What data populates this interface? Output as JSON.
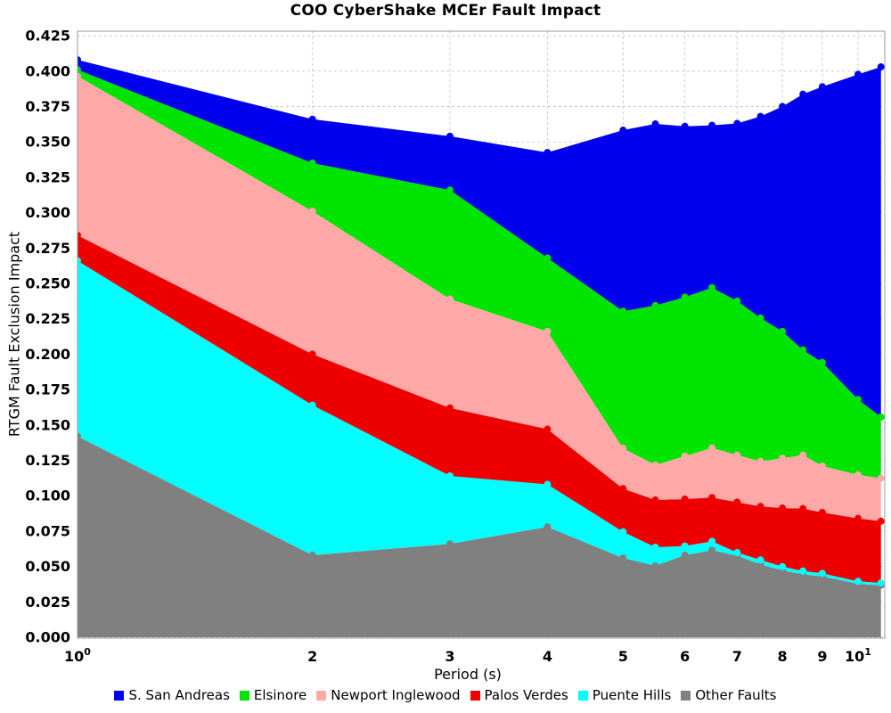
{
  "chart_data": {
    "type": "area",
    "stacked": true,
    "title": "COO CyberShake MCEr Fault Impact",
    "xlabel": "Period (s)",
    "ylabel": "RTGM Fault Exclusion Impact",
    "x_scale": "log",
    "xlim": [
      1,
      10.8
    ],
    "ylim": [
      0,
      0.425
    ],
    "grid": true,
    "legend_position": "bottom",
    "x": [
      1,
      2,
      3,
      4,
      5,
      5.5,
      6,
      6.5,
      7,
      7.5,
      8,
      8.5,
      9,
      10,
      10.7
    ],
    "x_ticks": [
      {
        "v": 1,
        "label": "10",
        "sup": "0"
      },
      {
        "v": 2,
        "label": "2"
      },
      {
        "v": 3,
        "label": "3"
      },
      {
        "v": 4,
        "label": "4"
      },
      {
        "v": 5,
        "label": "5"
      },
      {
        "v": 6,
        "label": "6"
      },
      {
        "v": 7,
        "label": "7"
      },
      {
        "v": 8,
        "label": "8"
      },
      {
        "v": 9,
        "label": "9"
      },
      {
        "v": 10,
        "label": "10",
        "sup": "1"
      }
    ],
    "y_tick_labels": [
      "0.000",
      "0.025",
      "0.050",
      "0.075",
      "0.100",
      "0.125",
      "0.150",
      "0.175",
      "0.200",
      "0.225",
      "0.250",
      "0.275",
      "0.300",
      "0.325",
      "0.350",
      "0.375",
      "0.400",
      "0.425"
    ],
    "y_tick_step": 0.025,
    "stack_order_bottom_to_top": [
      "Other Faults",
      "Puente Hills",
      "Palos Verdes",
      "Newport Inglewood",
      "Elsinore",
      "S. San Andreas"
    ],
    "series": [
      {
        "name": "S. San Andreas",
        "color": "#0000EE",
        "values": [
          0.007,
          0.031,
          0.038,
          0.0745,
          0.128,
          0.1283,
          0.1207,
          0.1147,
          0.1254,
          0.1424,
          0.1589,
          0.1807,
          0.1948,
          0.2297,
          0.2474
        ]
      },
      {
        "name": "Elsinore",
        "color": "#00E400",
        "values": [
          0.0045,
          0.034,
          0.077,
          0.052,
          0.0968,
          0.1127,
          0.1123,
          0.1133,
          0.1089,
          0.1013,
          0.0896,
          0.0743,
          0.0732,
          0.0532,
          0.0433
        ]
      },
      {
        "name": "Newport Inglewood",
        "color": "#FFA8A8",
        "values": [
          0.1125,
          0.101,
          0.077,
          0.069,
          0.0285,
          0.0247,
          0.0304,
          0.035,
          0.0332,
          0.0319,
          0.0352,
          0.0378,
          0.0328,
          0.0308,
          0.0303
        ]
      },
      {
        "name": "Palos Verdes",
        "color": "#EE0000",
        "values": [
          0.018,
          0.036,
          0.048,
          0.039,
          0.0305,
          0.0334,
          0.0331,
          0.0309,
          0.0357,
          0.0378,
          0.0414,
          0.0441,
          0.0431,
          0.0445,
          0.0436
        ]
      },
      {
        "name": "Puente Hills",
        "color": "#00FFFF",
        "values": [
          0.124,
          0.106,
          0.048,
          0.03,
          0.0185,
          0.0131,
          0.0065,
          0.0063,
          0.0021,
          0.0032,
          0.0027,
          0.0023,
          0.0021,
          0.0017,
          0.0017
        ]
      },
      {
        "name": "Other Faults",
        "color": "#808080",
        "values": [
          0.142,
          0.058,
          0.066,
          0.078,
          0.056,
          0.0505,
          0.058,
          0.0615,
          0.0577,
          0.0514,
          0.0472,
          0.0445,
          0.043,
          0.0378,
          0.0367
        ]
      }
    ],
    "grid_color": "#cccccc",
    "border_color": "#999999",
    "marker_radius": 4
  }
}
